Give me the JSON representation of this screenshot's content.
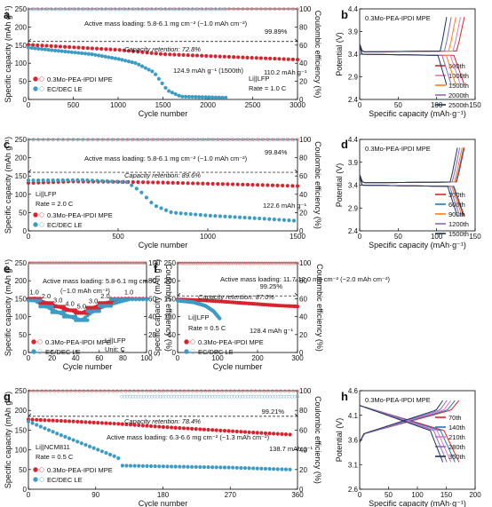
{
  "chart_data": [
    {
      "panel": "a",
      "type": "scatter",
      "xlabel": "Cycle number",
      "ylabel": "Specific capacity (mAh g⁻¹)",
      "y2label": "Coulombic efficiency (%)",
      "xlim": [
        0,
        3000
      ],
      "ylim": [
        0,
        250
      ],
      "y2lim": [
        0,
        100
      ],
      "xticks": [
        0,
        500,
        1000,
        1500,
        2000,
        2500,
        3000
      ],
      "yticks": [
        0,
        50,
        100,
        150,
        200,
        250
      ],
      "y2ticks": [
        0,
        20,
        40,
        60,
        80,
        100
      ],
      "series": [
        {
          "name": "0.3Mo-PEA-IPDI MPE",
          "axis": "capacity",
          "x": [
            0,
            500,
            1000,
            1500,
            2000,
            2500,
            3000
          ],
          "y": [
            151,
            144,
            137,
            125,
            120,
            115,
            110
          ]
        },
        {
          "name": "0.3Mo-PEA-IPDI MPE",
          "axis": "efficiency",
          "x": [
            0,
            3000
          ],
          "y": [
            99.9,
            99.9
          ]
        },
        {
          "name": "EC/DEC LE",
          "axis": "capacity",
          "x": [
            0,
            300,
            700,
            1000,
            1200,
            1400,
            1550,
            1700,
            2200
          ],
          "y": [
            143,
            135,
            125,
            112,
            100,
            75,
            25,
            8,
            5
          ]
        },
        {
          "name": "EC/DEC LE",
          "axis": "efficiency",
          "x": [
            0,
            2200
          ],
          "y": [
            99.5,
            99.5
          ]
        }
      ],
      "annotations": [
        "Active mass loading: 5.8-6.1 mg cm⁻² (~1.0 mAh cm⁻²)",
        "99.89%",
        "Capacity retention: 72.8%",
        "124.9 mAh g⁻¹ (1500th)",
        "110.2 mAh g⁻¹",
        "Li||LFP",
        "Rate = 1.0 C"
      ]
    },
    {
      "panel": "b",
      "type": "line",
      "xlabel": "Specific capacity (mAh·g⁻¹)",
      "ylabel": "Potential (V)",
      "xlim": [
        0,
        150
      ],
      "ylim": [
        2.4,
        4.4
      ],
      "xticks": [
        0,
        50,
        100,
        150
      ],
      "yticks": [
        2.4,
        2.9,
        3.4,
        3.9,
        4.4
      ],
      "title": "0.3Mo-PEA-IPDI MPE",
      "series": [
        {
          "name": "500th",
          "color": "#d62728",
          "capacity": 136
        },
        {
          "name": "1000th",
          "color": "#e377c2",
          "capacity": 131
        },
        {
          "name": "1500th",
          "color": "#ff7f0e",
          "capacity": 125
        },
        {
          "name": "2000th",
          "color": "#9467bd",
          "capacity": 119
        },
        {
          "name": "2500th",
          "color": "#17365d",
          "capacity": 113
        }
      ]
    },
    {
      "panel": "c",
      "type": "scatter",
      "xlabel": "Cycle number",
      "ylabel": "Specific capacity (mAh g⁻¹)",
      "y2label": "Coulombic efficiency (%)",
      "xlim": [
        0,
        1500
      ],
      "ylim": [
        0,
        250
      ],
      "y2lim": [
        0,
        100
      ],
      "xticks": [
        0,
        500,
        1000,
        1500
      ],
      "yticks": [
        0,
        50,
        100,
        150,
        200,
        250
      ],
      "y2ticks": [
        0,
        20,
        40,
        60,
        80,
        100
      ],
      "series": [
        {
          "name": "0.3Mo-PEA-IPDI MPE",
          "axis": "capacity",
          "x": [
            0,
            250,
            500,
            750,
            1000,
            1250,
            1500
          ],
          "y": [
            131,
            135,
            134,
            132,
            129,
            126,
            122.6
          ]
        },
        {
          "name": "0.3Mo-PEA-IPDI MPE",
          "axis": "efficiency",
          "x": [
            0,
            1500
          ],
          "y": [
            99.9,
            99.9
          ]
        },
        {
          "name": "EC/DEC LE",
          "axis": "capacity",
          "x": [
            0,
            300,
            550,
            620,
            700,
            800,
            1000,
            1250,
            1480
          ],
          "y": [
            138,
            139,
            133,
            110,
            70,
            50,
            42,
            35,
            28
          ]
        },
        {
          "name": "EC/DEC LE",
          "axis": "efficiency",
          "x": [
            0,
            1480
          ],
          "y": [
            99.5,
            99.5
          ]
        }
      ],
      "annotations": [
        "Active mass loading: 5.8-6.1 mg cm⁻² (~1.0 mAh cm⁻²)",
        "99.84%",
        "Capacity retention: 89.6%",
        "122.6 mAh g⁻¹",
        "Li||LFP",
        "Rate = 2.0 C"
      ]
    },
    {
      "panel": "d",
      "type": "line",
      "xlabel": "Specific capacity (mAh·g⁻¹)",
      "ylabel": "Potential (V)",
      "xlim": [
        0,
        150
      ],
      "ylim": [
        2.4,
        4.4
      ],
      "xticks": [
        0,
        50,
        100,
        150
      ],
      "yticks": [
        2.4,
        2.9,
        3.4,
        3.9,
        4.4
      ],
      "title": "0.3Mo-PEA-IPDI MPE",
      "series": [
        {
          "name": "300th",
          "color": "#d62728",
          "capacity": 136
        },
        {
          "name": "600th",
          "color": "#1f77b4",
          "capacity": 135
        },
        {
          "name": "900th",
          "color": "#ff7f0e",
          "capacity": 133
        },
        {
          "name": "1200th",
          "color": "#9467bd",
          "capacity": 130
        },
        {
          "name": "1500th",
          "color": "#17365d",
          "capacity": 127
        }
      ]
    },
    {
      "panel": "e",
      "type": "scatter",
      "xlabel": "Cycle number",
      "ylabel": "Specific capacity (mAh g⁻¹)",
      "y2label": "Coulombic efficiency (%)",
      "xlim": [
        0,
        100
      ],
      "ylim": [
        0,
        250
      ],
      "y2lim": [
        0,
        100
      ],
      "xticks": [
        0,
        20,
        40,
        60,
        80,
        100
      ],
      "yticks": [
        0,
        50,
        100,
        150,
        200,
        250
      ],
      "y2ticks": [
        0,
        20,
        40,
        60,
        80,
        100
      ],
      "rates": [
        "1.0",
        "2.0",
        "3.0",
        "4.0",
        "5.0",
        "3.0",
        "2.0",
        "1.0"
      ],
      "series": [
        {
          "name": "0.3Mo-PEA-IPDI MPE",
          "axis": "capacity",
          "x": [
            5,
            15,
            25,
            35,
            45,
            55,
            65,
            85
          ],
          "y": [
            150,
            138,
            128,
            118,
            110,
            125,
            138,
            150
          ]
        },
        {
          "name": "EC/DEC LE",
          "axis": "capacity",
          "x": [
            5,
            15,
            25,
            35,
            45,
            55,
            65,
            85
          ],
          "y": [
            145,
            128,
            112,
            100,
            90,
            115,
            130,
            148
          ]
        }
      ],
      "annotations": [
        "Active mass loading: 5.8-6.1 mg cm⁻²",
        "(~1.0 mAh cm⁻²)",
        "Li||LFP",
        "Unit: C"
      ]
    },
    {
      "panel": "f",
      "type": "scatter",
      "xlabel": "Cycle number",
      "ylabel": "Specific capacity (mAh g⁻¹)",
      "y2label": "Coulombic efficiency (%)",
      "xlim": [
        0,
        300
      ],
      "ylim": [
        0,
        250
      ],
      "y2lim": [
        0,
        100
      ],
      "xticks": [
        0,
        100,
        200,
        300
      ],
      "yticks": [
        0,
        50,
        100,
        150,
        200,
        250
      ],
      "y2ticks": [
        0,
        20,
        40,
        60,
        80,
        100
      ],
      "series": [
        {
          "name": "0.3Mo-PEA-IPDI MPE",
          "axis": "capacity",
          "x": [
            0,
            50,
            100,
            150,
            200,
            250,
            300
          ],
          "y": [
            148,
            146,
            143,
            139,
            135,
            131,
            128.4
          ]
        },
        {
          "name": "EC/DEC LE",
          "axis": "capacity",
          "x": [
            0,
            40,
            70,
            90,
            105
          ],
          "y": [
            145,
            140,
            130,
            115,
            95
          ]
        }
      ],
      "annotations": [
        "Active mass loading: 11.7-12.0 mg cm⁻² (~2.0 mAh cm⁻²)",
        "99.25%",
        "Capacity retention: 87.0%",
        "128.4 mAh g⁻¹",
        "Li||LFP",
        "Rate = 0.5 C"
      ]
    },
    {
      "panel": "g",
      "type": "scatter",
      "xlabel": "Cycle number",
      "ylabel": "Specific capacity (mAh g⁻¹)",
      "y2label": "Coulombic efficiency (%)",
      "xlim": [
        0,
        360
      ],
      "ylim": [
        0,
        250
      ],
      "y2lim": [
        0,
        100
      ],
      "xticks": [
        0,
        90,
        180,
        270,
        360
      ],
      "yticks": [
        0,
        50,
        100,
        150,
        200,
        250
      ],
      "y2ticks": [
        0,
        20,
        40,
        60,
        80,
        100
      ],
      "series": [
        {
          "name": "0.3Mo-PEA-IPDI MPE",
          "axis": "capacity",
          "x": [
            0,
            60,
            120,
            180,
            240,
            300,
            350
          ],
          "y": [
            177,
            172,
            166,
            158,
            151,
            144,
            138.7
          ]
        },
        {
          "name": "EC/DEC LE",
          "axis": "capacity",
          "x": [
            0,
            40,
            80,
            120,
            125,
            180,
            270,
            350
          ],
          "y": [
            172,
            140,
            110,
            80,
            60,
            58,
            55,
            50
          ]
        }
      ],
      "annotations": [
        "99.21%",
        "Capacity retention: 78.4%",
        "Active mass loading: 6.3-6.6 mg cm⁻² (~1.3 mAh cm⁻²)",
        "138.7 mAh g⁻¹",
        "Li||NCM811",
        "Rate = 0.5 C"
      ]
    },
    {
      "panel": "h",
      "type": "line",
      "xlabel": "Specific capacity (mAh·g⁻¹)",
      "ylabel": "Potential (V)",
      "xlim": [
        0,
        200
      ],
      "ylim": [
        2.6,
        4.6
      ],
      "xticks": [
        0,
        50,
        100,
        150,
        200
      ],
      "yticks": [
        2.6,
        3.1,
        3.6,
        4.1,
        4.6
      ],
      "title": "0.3Mo-PEA-IPDI MPE",
      "series": [
        {
          "name": "70th",
          "color": "#d62728",
          "capacity": 172
        },
        {
          "name": "140th",
          "color": "#1f77b4",
          "capacity": 165
        },
        {
          "name": "210th",
          "color": "#e377c2",
          "capacity": 158
        },
        {
          "name": "280th",
          "color": "#9467bd",
          "capacity": 151
        },
        {
          "name": "350th",
          "color": "#17365d",
          "capacity": 144
        }
      ]
    }
  ],
  "colors": {
    "mpe": "#d9232e",
    "mpe_hollow": "#e9797e",
    "le": "#3c9cc4",
    "le_hollow": "#8cc6de"
  }
}
